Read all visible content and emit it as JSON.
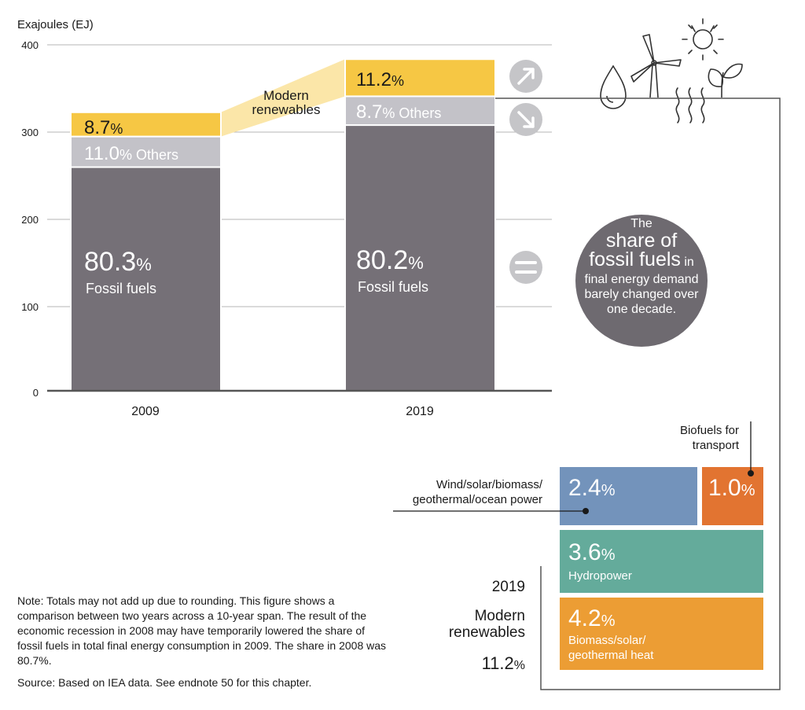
{
  "chart_data": {
    "type": "bar",
    "stacked": true,
    "ylabel": "Exajoules (EJ)",
    "ylim": [
      0,
      400
    ],
    "yticks": [
      "0",
      "100",
      "200",
      "300",
      "400"
    ],
    "grid": true,
    "categories": [
      "2009",
      "2019"
    ],
    "totals_ej": [
      322,
      383
    ],
    "series": [
      {
        "name": "Fossil fuels",
        "values_pct": [
          80.3,
          80.2
        ],
        "values_ej": [
          258.6,
          307.2
        ],
        "color": "#757077"
      },
      {
        "name": "Others",
        "values_pct": [
          11.0,
          8.7
        ],
        "values_ej": [
          35.4,
          33.3
        ],
        "color": "#c3c2c8"
      },
      {
        "name": "Modern renewables",
        "values_pct": [
          8.7,
          11.2
        ],
        "values_ej": [
          28.0,
          42.9
        ],
        "color": "#f6c744"
      }
    ],
    "labels": {
      "b2009": {
        "renew": "8.7",
        "others": "11.0",
        "others_suffix": "% Others",
        "fossil": "80.3",
        "fossil_name": "Fossil fuels"
      },
      "b2019": {
        "renew": "11.2",
        "others": "8.7",
        "others_suffix": "% Others",
        "fossil": "80.2",
        "fossil_name": "Fossil fuels"
      },
      "pct": "%",
      "band_label_1": "Modern",
      "band_label_2": "renewables"
    },
    "trend_icons": [
      "arrow-up-right-icon",
      "arrow-down-right-icon",
      "equals-icon"
    ],
    "circle": {
      "line1": "The",
      "line2": "share of",
      "line3a": "fossil fuels",
      "line3b": " in",
      "line4": "final energy demand",
      "line5": "barely changed over",
      "line6": "one decade.",
      "color": "#6e6a70"
    },
    "breakdown_2019": {
      "year": "2019",
      "title_1": "Modern",
      "title_2": "renewables",
      "total": "11.2",
      "items": [
        {
          "pct": "2.4",
          "label_1": "Wind/solar/biomass/",
          "label_2": "geothermal/ocean power",
          "color": "#7393bb"
        },
        {
          "pct": "1.0",
          "label_1": "Biofuels for",
          "label_2": "transport",
          "color": "#e27431"
        },
        {
          "pct": "3.6",
          "label_1": "Hydropower",
          "color": "#64ab9b"
        },
        {
          "pct": "4.2",
          "label_1": "Biomass/solar/",
          "label_2": "geothermal heat",
          "color": "#ec9d34"
        }
      ]
    }
  },
  "note": "Note: Totals may not add up due to rounding. This figure shows a comparison between two years across a 10-year span. The result of the economic recession in 2008 may have temporarily lowered the share of fossil fuels in total final energy consumption in 2009. The share in 2008 was 80.7%.",
  "source": "Source: Based on IEA data. See endnote 50 for this chapter."
}
